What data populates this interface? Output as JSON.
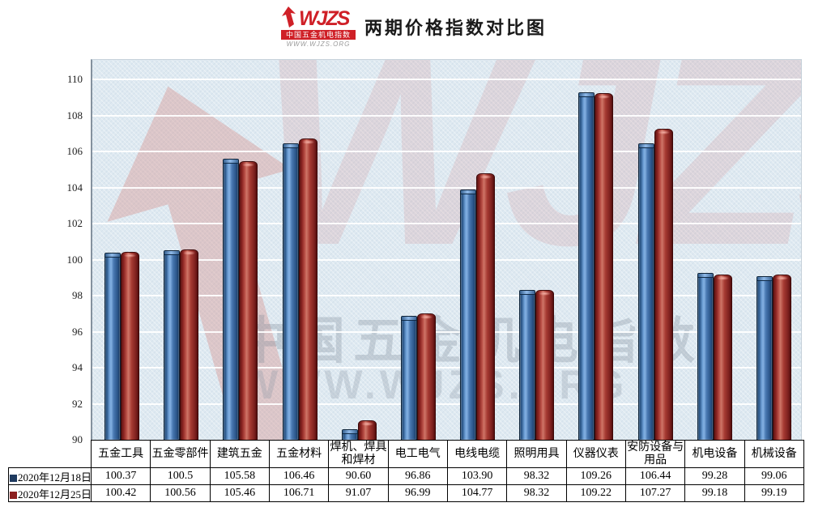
{
  "header": {
    "logo": {
      "brand": "WJZS",
      "subtitle": "中国五金机电指数",
      "url": "WWW.WJZS.ORG"
    },
    "title": "两期价格指数对比图"
  },
  "chart_data": {
    "type": "bar",
    "title": "两期价格指数对比图",
    "categories": [
      "五金工具",
      "五金零部件",
      "建筑五金",
      "五金材料",
      "焊机、焊具和焊材",
      "电工电气",
      "电线电缆",
      "照明用具",
      "仪器仪表",
      "安防设备与用品",
      "机电设备",
      "机械设备"
    ],
    "series": [
      {
        "name": "2020年12月18日",
        "color": "#3a6ba3",
        "marker_color": "#1f3a5f",
        "values": [
          100.37,
          100.5,
          105.58,
          106.46,
          90.6,
          96.86,
          103.9,
          98.32,
          109.26,
          106.44,
          99.28,
          99.06
        ]
      },
      {
        "name": "2020年12月25日",
        "color": "#a63a32",
        "marker_color": "#8b1f1f",
        "values": [
          100.42,
          100.56,
          105.46,
          106.71,
          91.07,
          96.99,
          104.77,
          98.32,
          109.22,
          107.27,
          99.18,
          99.19
        ]
      }
    ],
    "ylim": [
      90,
      110
    ],
    "yticks": [
      110,
      108,
      106,
      104,
      102,
      100,
      98,
      96,
      94,
      92,
      90
    ],
    "grid": true,
    "legend_position": "table-row-labels"
  },
  "table": {
    "columns": [
      "五金工具",
      "五金零部件",
      "建筑五金",
      "五金材料",
      "焊机、焊具和焊材",
      "电工电气",
      "电线电缆",
      "照明用具",
      "仪器仪表",
      "安防设备与用品",
      "机电设备",
      "机械设备"
    ],
    "rows": [
      {
        "label": "2020年12月18日",
        "marker_color": "#1f3a5f",
        "values": [
          "100.37",
          "100.5",
          "105.58",
          "106.46",
          "90.60",
          "96.86",
          "103.90",
          "98.32",
          "109.26",
          "106.44",
          "99.28",
          "99.06"
        ]
      },
      {
        "label": "2020年12月25日",
        "marker_color": "#8b1f1f",
        "values": [
          "100.42",
          "100.56",
          "105.46",
          "106.71",
          "91.07",
          "96.99",
          "104.77",
          "98.32",
          "109.22",
          "107.27",
          "99.18",
          "99.19"
        ]
      }
    ]
  },
  "watermarks": {
    "brand": "WJZS",
    "cn": "中国五金机电指数",
    "url": "WWW.WJZS.ORG"
  },
  "colors": {
    "accent_red": "#cf2027",
    "bar1": "#3a6ba3",
    "bar2": "#a63a32",
    "plot_bg": "#dee9f1",
    "gridline": "#ffffff"
  }
}
